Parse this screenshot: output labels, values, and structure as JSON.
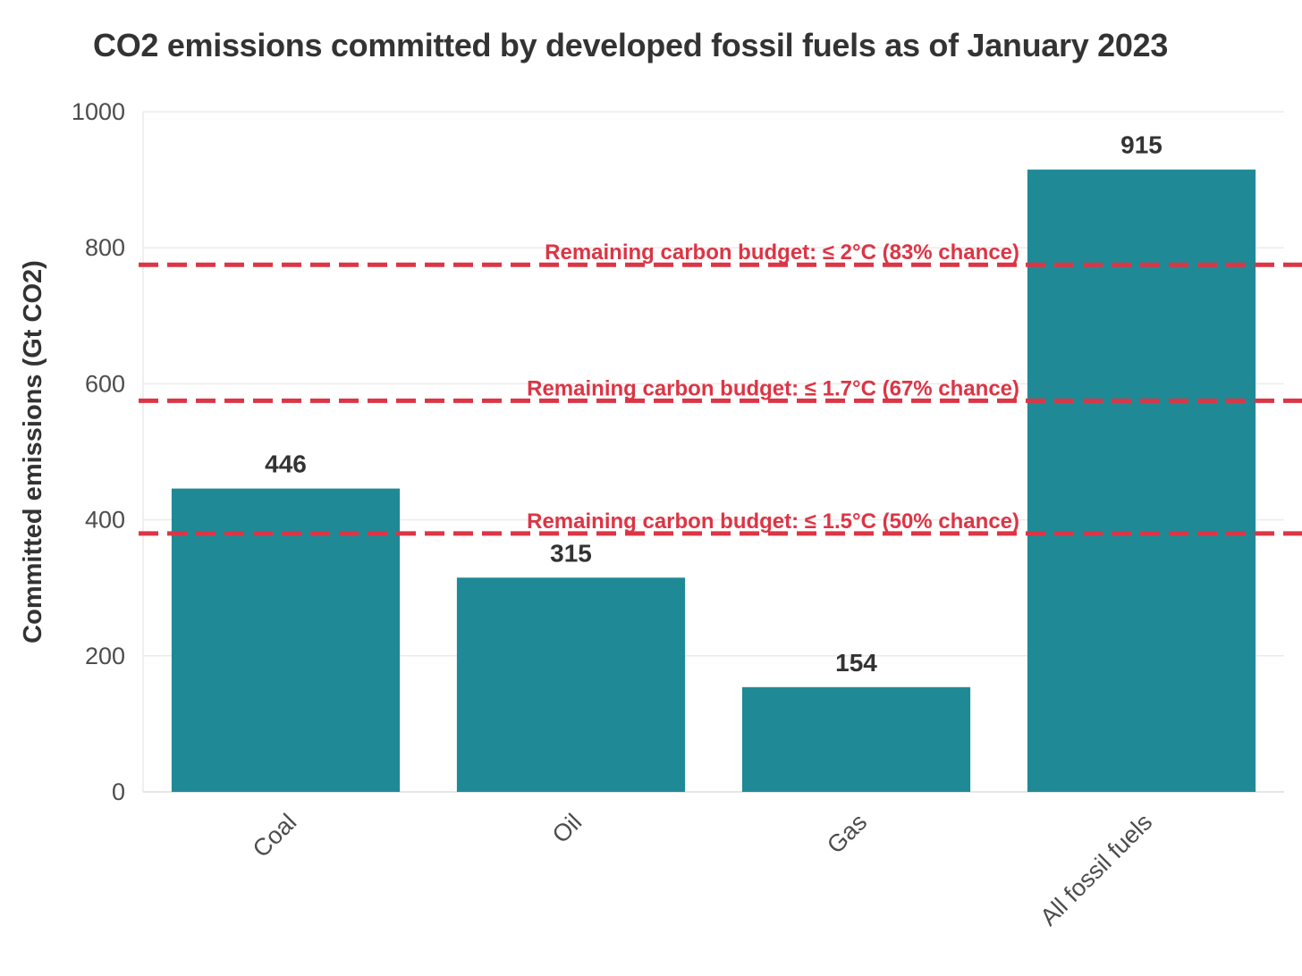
{
  "chart_data": {
    "type": "bar",
    "title": "CO2 emissions committed by developed fossil fuels as of January 2023",
    "xlabel": "",
    "ylabel": "Committed emissions (Gt CO2)",
    "categories": [
      "Coal",
      "Oil",
      "Gas",
      "All fossil fuels"
    ],
    "values": [
      446,
      315,
      154,
      915
    ],
    "data_labels": [
      "446",
      "315",
      "154",
      "915"
    ],
    "ylim": [
      0,
      1000
    ],
    "yticks": [
      0,
      200,
      400,
      600,
      800,
      1000
    ],
    "ytick_labels": [
      "0",
      "200",
      "400",
      "600",
      "800",
      "1000"
    ],
    "grid": true,
    "bar_color": "#1f8a96",
    "reference_lines": [
      {
        "value": 775,
        "label": "Remaining carbon budget: ≤ 2°C (83% chance)"
      },
      {
        "value": 575,
        "label": "Remaining carbon budget: ≤ 1.7°C (67% chance)"
      },
      {
        "value": 380,
        "label": "Remaining carbon budget: ≤ 1.5°C (50% chance)"
      }
    ],
    "reference_line_color": "#dc3545",
    "legend": "none"
  }
}
